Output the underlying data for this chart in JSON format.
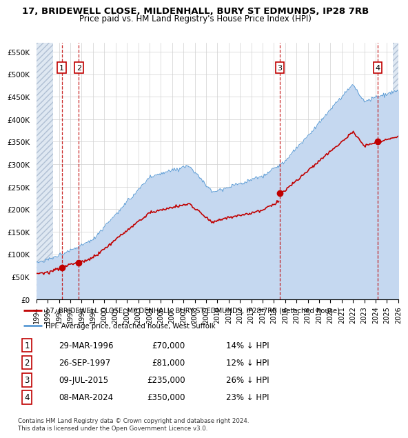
{
  "title1": "17, BRIDEWELL CLOSE, MILDENHALL, BURY ST EDMUNDS, IP28 7RB",
  "title2": "Price paid vs. HM Land Registry's House Price Index (HPI)",
  "ylabel_ticks": [
    "£0",
    "£50K",
    "£100K",
    "£150K",
    "£200K",
    "£250K",
    "£300K",
    "£350K",
    "£400K",
    "£450K",
    "£500K",
    "£550K"
  ],
  "ytick_vals": [
    0,
    50000,
    100000,
    150000,
    200000,
    250000,
    300000,
    350000,
    400000,
    450000,
    500000,
    550000
  ],
  "xlim": [
    1994,
    2026
  ],
  "ylim": [
    0,
    570000
  ],
  "hpi_color": "#c5d8f0",
  "hpi_line_color": "#5b9bd5",
  "price_color": "#c00000",
  "sale_points": [
    {
      "date_num": 1996.24,
      "price": 70000,
      "label": "1"
    },
    {
      "date_num": 1997.74,
      "price": 81000,
      "label": "2"
    },
    {
      "date_num": 2015.52,
      "price": 235000,
      "label": "3"
    },
    {
      "date_num": 2024.18,
      "price": 350000,
      "label": "4"
    }
  ],
  "legend_entries": [
    {
      "text": "17, BRIDEWELL CLOSE, MILDENHALL, BURY ST EDMUNDS, IP28 7RB (detached house)",
      "color": "#c00000"
    },
    {
      "text": "HPI: Average price, detached house, West Suffolk",
      "color": "#5b9bd5"
    }
  ],
  "table_rows": [
    {
      "num": "1",
      "date": "29-MAR-1996",
      "price": "£70,000",
      "note": "14% ↓ HPI"
    },
    {
      "num": "2",
      "date": "26-SEP-1997",
      "price": "£81,000",
      "note": "12% ↓ HPI"
    },
    {
      "num": "3",
      "date": "09-JUL-2015",
      "price": "£235,000",
      "note": "26% ↓ HPI"
    },
    {
      "num": "4",
      "date": "08-MAR-2024",
      "price": "£350,000",
      "note": "23% ↓ HPI"
    }
  ],
  "footer": "Contains HM Land Registry data © Crown copyright and database right 2024.\nThis data is licensed under the Open Government Licence v3.0.",
  "hatch_left_end": 1995.5,
  "hatch_right_start": 2025.5
}
